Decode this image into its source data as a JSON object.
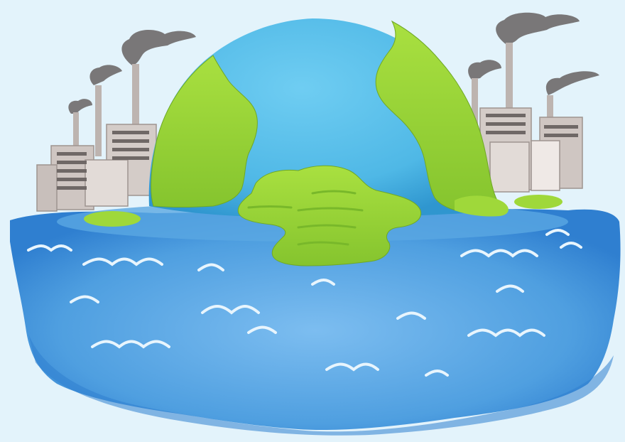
{
  "illustration": {
    "subject": "melting-earth-globe",
    "colors": {
      "background": "#e3f3fb",
      "ocean": "#4f9fe0",
      "ocean_dark": "#2f7fd0",
      "ocean_light": "#7cbdf0",
      "globe_water": "#4fb8e6",
      "globe_water_dark": "#2f96cf",
      "land": "#9fd83a",
      "land_dark": "#78b82a",
      "building": "#cfc6c2",
      "building_shade": "#9e9490",
      "window": "#6f6866",
      "smoke": "#6e6a6a",
      "wave": "#e8f5fd"
    },
    "elements": [
      "ocean-flood",
      "melting-globe",
      "factory-cluster-left",
      "factory-cluster-right",
      "smoke-plumes",
      "waves"
    ]
  }
}
